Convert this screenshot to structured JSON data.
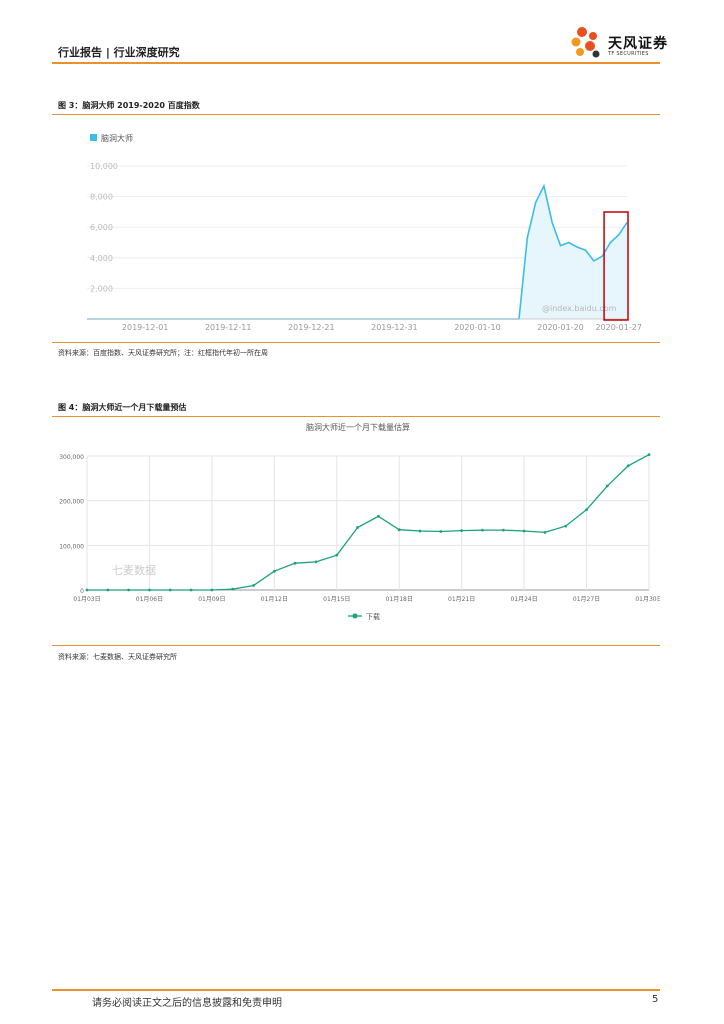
{
  "header": {
    "left_text": "行业报告 | 行业深度研究",
    "logo_cn": "天风证券",
    "logo_en": "TF SECURITIES"
  },
  "figure3": {
    "title": "图 3：脑洞大师 2019-2020 百度指数",
    "source": "资料来源：百度指数、天风证券研究所；注：红框指代年初一所在周",
    "watermark": "@index.baidu.com",
    "chart_data": {
      "type": "area",
      "legend": [
        "脑洞大师"
      ],
      "x_ticks": [
        "2019-12-01",
        "2019-12-11",
        "2019-12-21",
        "2019-12-31",
        "2020-01-10",
        "2020-01-20",
        "2020-01-27"
      ],
      "y_ticks": [
        "10,000",
        "8,000",
        "6,000",
        "4,000",
        "2,000"
      ],
      "ylim": [
        0,
        10000
      ],
      "series": [
        {
          "name": "脑洞大师",
          "x": [
            "2019-11-24",
            "2020-01-15",
            "2020-01-16",
            "2020-01-17",
            "2020-01-18",
            "2020-01-19",
            "2020-01-20",
            "2020-01-21",
            "2020-01-22",
            "2020-01-23",
            "2020-01-24",
            "2020-01-25",
            "2020-01-26",
            "2020-01-27",
            "2020-01-28"
          ],
          "values": [
            0,
            0,
            5300,
            7600,
            8700,
            6300,
            4800,
            5000,
            4700,
            4500,
            3800,
            4100,
            5000,
            5500,
            6300
          ]
        }
      ],
      "highlight": [
        "2020-01-25",
        "2020-01-28"
      ],
      "color": "#3bbde8"
    }
  },
  "figure4": {
    "title": "图 4：脑洞大师近一个月下载量预估",
    "source": "资料来源：七麦数据、天风证券研究所",
    "watermark": "七麦数据",
    "chart_data": {
      "type": "line",
      "title": "脑洞大师近一个月下载量估算",
      "categories": [
        "01月03日",
        "01月04日",
        "01月05日",
        "01月06日",
        "01月07日",
        "01月08日",
        "01月09日",
        "01月10日",
        "01月11日",
        "01月12日",
        "01月13日",
        "01月14日",
        "01月15日",
        "01月16日",
        "01月17日",
        "01月18日",
        "01月19日",
        "01月20日",
        "01月21日",
        "01月22日",
        "01月23日",
        "01月24日",
        "01月25日",
        "01月26日",
        "01月27日",
        "01月28日",
        "01月29日",
        "01月30日"
      ],
      "x_tick_labels": [
        "01月03日",
        "01月06日",
        "01月09日",
        "01月12日",
        "01月15日",
        "01月18日",
        "01月21日",
        "01月24日",
        "01月27日",
        "01月30日"
      ],
      "y_ticks": [
        "300,000",
        "200,000",
        "100,000",
        "0"
      ],
      "ylim": [
        0,
        300000
      ],
      "series": [
        {
          "name": "下载",
          "values": [
            0,
            0,
            0,
            0,
            0,
            0,
            0,
            2000,
            10000,
            42000,
            60000,
            63000,
            78000,
            140000,
            165000,
            135000,
            132000,
            131000,
            133000,
            134000,
            134000,
            132000,
            129000,
            143000,
            180000,
            233000,
            278000,
            303000
          ]
        }
      ],
      "color": "#1aa37a"
    }
  },
  "footer": {
    "disclaimer": "请务必阅读正文之后的信息披露和免责申明",
    "page_number": "5"
  }
}
